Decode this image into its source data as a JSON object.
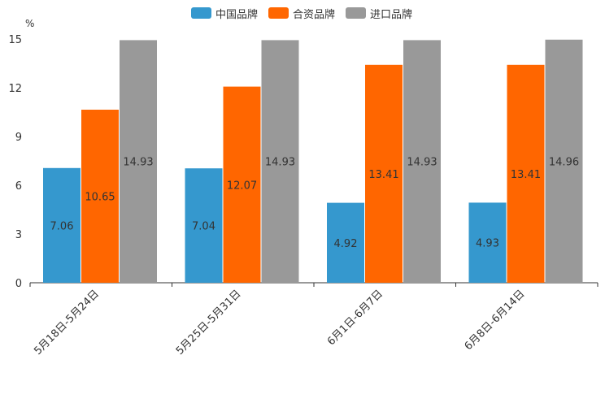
{
  "chart_data": {
    "type": "bar",
    "title": "",
    "ylabel": "%",
    "xlabel": "",
    "ylim": [
      0,
      15
    ],
    "yticks": [
      "0",
      "3",
      "6",
      "9",
      "12",
      "15"
    ],
    "categories": [
      "5月18日-5月24日",
      "5月25日-5月31日",
      "6月1日-6月7日",
      "6月8日-6月14日"
    ],
    "series": [
      {
        "name": "中国品牌",
        "color": "#3598ce",
        "values": [
          7.06,
          7.04,
          4.92,
          4.93
        ],
        "labels": [
          "7.06",
          "7.04",
          "4.92",
          "4.93"
        ]
      },
      {
        "name": "合资品牌",
        "color": "#ff6600",
        "values": [
          10.65,
          12.07,
          13.41,
          13.41
        ],
        "labels": [
          "10.65",
          "12.07",
          "13.41",
          "13.41"
        ]
      },
      {
        "name": "进口品牌",
        "color": "#999999",
        "values": [
          14.93,
          14.93,
          14.93,
          14.96
        ],
        "labels": [
          "14.93",
          "14.93",
          "14.93",
          "14.96"
        ]
      }
    ],
    "legend_position": "top-center"
  }
}
